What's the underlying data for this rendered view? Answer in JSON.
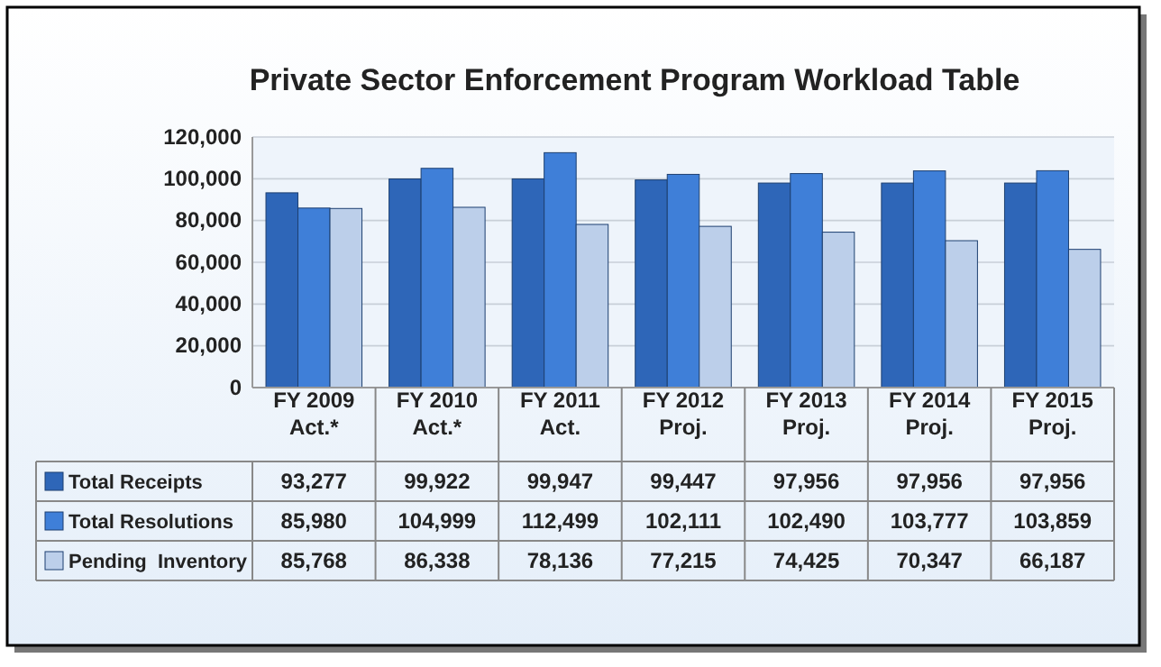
{
  "chart_data": {
    "type": "bar",
    "title": "Private Sector  Enforcement Program Workload Table",
    "categories": [
      "FY 2009 Act.*",
      "FY 2010 Act.*",
      "FY 2011 Act.",
      "FY 2012 Proj.",
      "FY 2013 Proj.",
      "FY 2014 Proj.",
      "FY 2015 Proj."
    ],
    "series": [
      {
        "name": "Total Receipts",
        "color": "#2e66b8",
        "values": [
          93277,
          99922,
          99947,
          99447,
          97956,
          97956,
          97956
        ],
        "value_labels": [
          "93,277",
          "99,922",
          "99,947",
          "99,447",
          "97,956",
          "97,956",
          "97,956"
        ]
      },
      {
        "name": "Total Resolutions",
        "color": "#3f7fd8",
        "values": [
          85980,
          104999,
          112499,
          102111,
          102490,
          103777,
          103859
        ],
        "value_labels": [
          "85,980",
          "104,999",
          "112,499",
          "102,111",
          "102,490",
          "103,777",
          "103,859"
        ]
      },
      {
        "name": "Pending  Inventory",
        "color": "#bccfea",
        "values": [
          85768,
          86338,
          78136,
          77215,
          74425,
          70347,
          66187
        ],
        "value_labels": [
          "85,768",
          "86,338",
          "78,136",
          "77,215",
          "74,425",
          "70,347",
          "66,187"
        ]
      }
    ],
    "ylim": [
      0,
      120000
    ],
    "yticks": [
      {
        "value": 0,
        "label": "0"
      },
      {
        "value": 20000,
        "label": "20,000"
      },
      {
        "value": 40000,
        "label": "40,000"
      },
      {
        "value": 60000,
        "label": "60,000"
      },
      {
        "value": 80000,
        "label": "80,000"
      },
      {
        "value": 100000,
        "label": "100,000"
      },
      {
        "value": 120000,
        "label": "120,000"
      }
    ],
    "grid": "y",
    "legend": "bottom left"
  }
}
